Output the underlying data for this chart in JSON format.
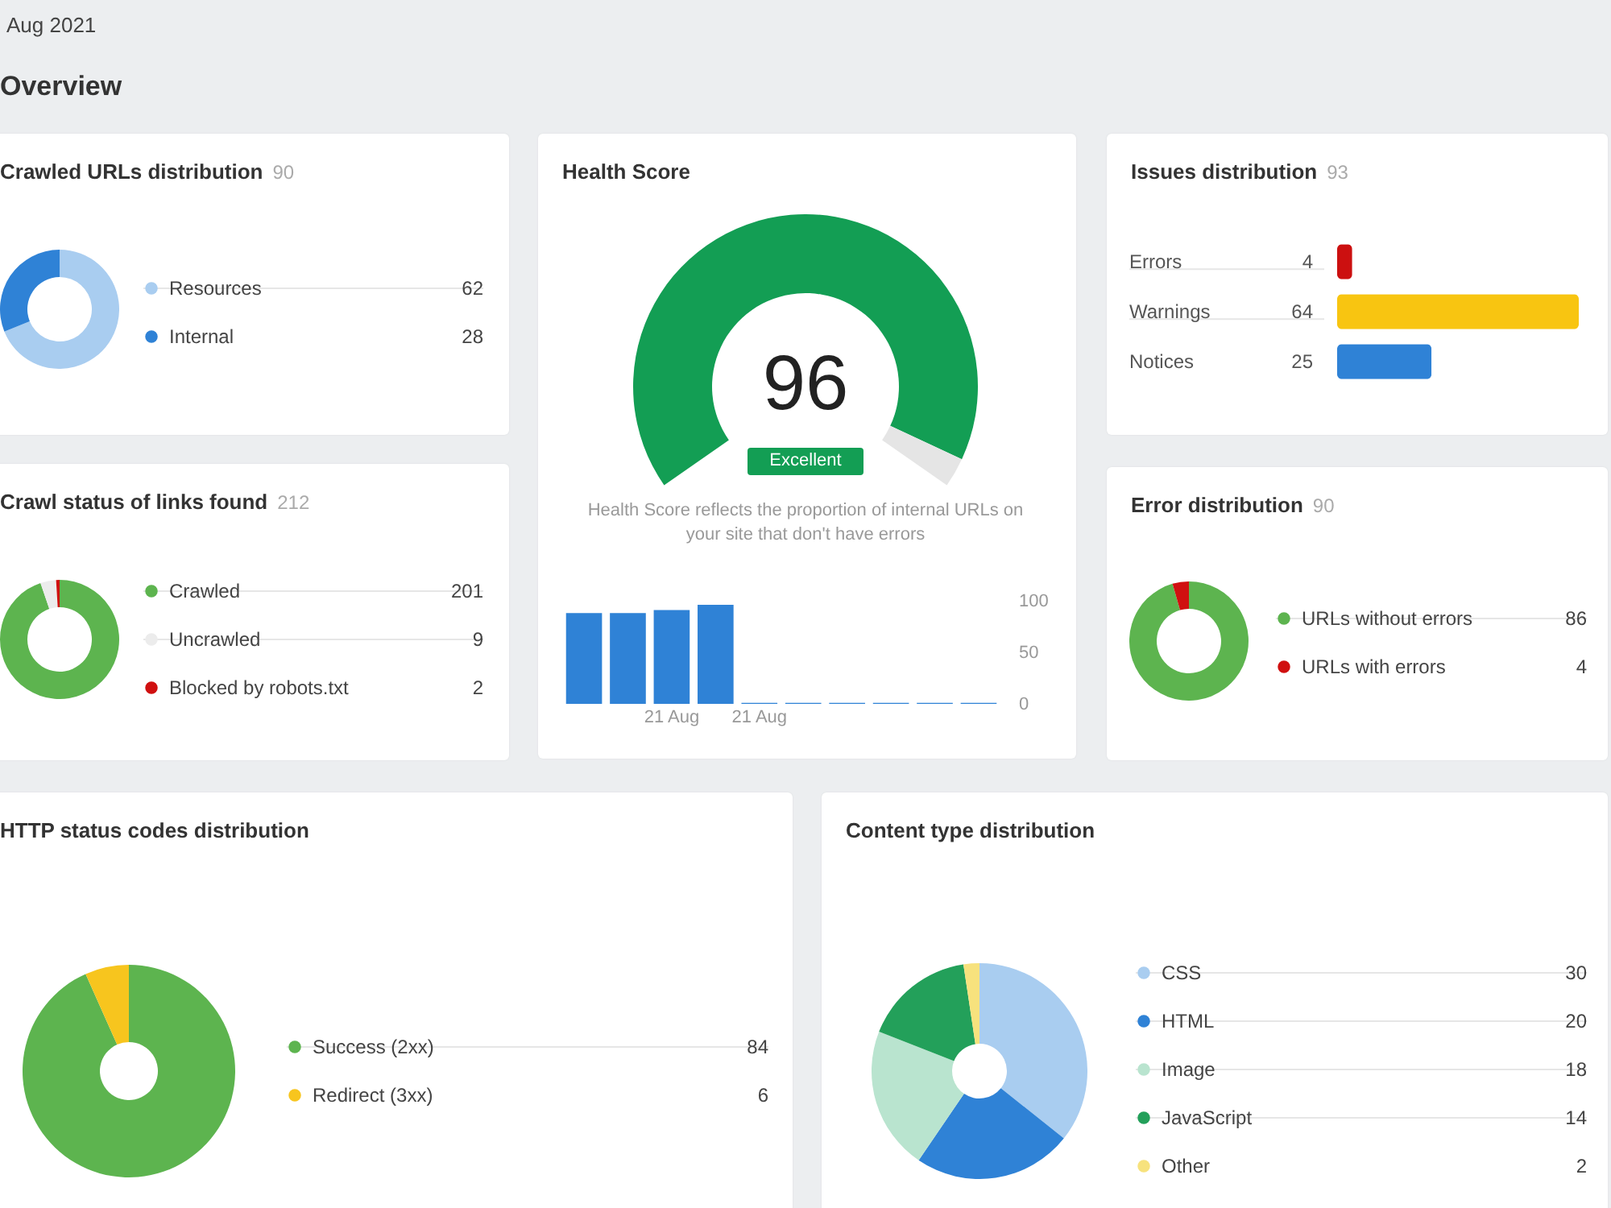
{
  "chart_data": [
    {
      "type": "other",
      "title": "Overview",
      "annotations": [
        "Aug 2021"
      ]
    },
    {
      "type": "donut",
      "title": "Crawled URLs distribution",
      "subtitle": "90",
      "categories": [
        "Resources",
        "Internal"
      ],
      "values": [
        62,
        28
      ],
      "colors": [
        "#a9cdf0",
        "#2f82d6"
      ],
      "legend": "right",
      "data_labels": true
    },
    {
      "type": "donut",
      "title": "Health Score",
      "categories": [
        null,
        null
      ],
      "values": [
        96,
        4
      ],
      "colors": [
        "#139e54",
        "#e5e5e5"
      ],
      "value_labels": [
        "96",
        null
      ],
      "annotations": [
        "Excellent",
        "Health Score reflects the proportion of internal URLs on your site that don't have errors"
      ]
    },
    {
      "type": "bar",
      "categories": [
        null,
        null,
        "21 Aug",
        null,
        "21 Aug",
        null,
        null,
        null,
        null,
        null
      ],
      "values": [
        88,
        88,
        91,
        96,
        1,
        1,
        1,
        1,
        1,
        1
      ],
      "color": "#2f82d6",
      "ylim": [
        0,
        100
      ],
      "yticks": [
        0,
        50,
        100
      ]
    },
    {
      "type": "bar",
      "orientation": "horizontal",
      "title": "Issues distribution",
      "subtitle": "93",
      "categories": [
        "Errors",
        "Warnings",
        "Notices"
      ],
      "values": [
        4,
        64,
        25
      ],
      "colors": [
        "#cc1010",
        "#f8c511",
        "#2f82d6"
      ],
      "data_labels": true
    },
    {
      "type": "donut",
      "title": "Crawl status of links found",
      "subtitle": "212",
      "categories": [
        "Crawled",
        "Uncrawled",
        "Blocked by robots.txt"
      ],
      "values": [
        201,
        9,
        2
      ],
      "colors": [
        "#5db44f",
        "#ececec",
        "#d01010"
      ],
      "legend": "right",
      "data_labels": true
    },
    {
      "type": "donut",
      "title": "Error distribution",
      "subtitle": "90",
      "categories": [
        "URLs without errors",
        "URLs with errors"
      ],
      "values": [
        86,
        4
      ],
      "colors": [
        "#5db44f",
        "#d01010"
      ],
      "legend": "right",
      "data_labels": true
    },
    {
      "type": "donut",
      "title": "HTTP status codes distribution",
      "categories": [
        "Success (2xx)",
        "Redirect (3xx)"
      ],
      "values": [
        84,
        6
      ],
      "colors": [
        "#5db44f",
        "#f7c51e"
      ],
      "legend": "right",
      "data_labels": true
    },
    {
      "type": "donut",
      "title": "Content type distribution",
      "categories": [
        "CSS",
        "HTML",
        "Image",
        "JavaScript",
        "Other"
      ],
      "values": [
        30,
        20,
        18,
        14,
        2
      ],
      "colors": [
        "#a9cdf0",
        "#2f82d6",
        "#b9e4cf",
        "#23a05a",
        "#f7e27d"
      ],
      "legend": "right",
      "data_labels": true
    }
  ]
}
